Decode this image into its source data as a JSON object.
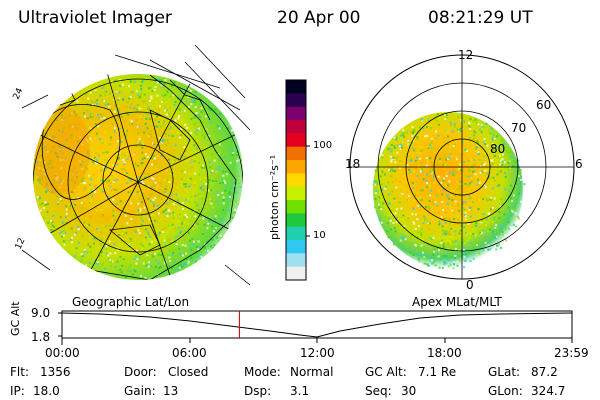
{
  "header": {
    "instrument": "Ultraviolet Imager",
    "date": "20 Apr 00",
    "time": "08:21:29 UT"
  },
  "colorbar": {
    "unit_label": "photon cm⁻²s⁻¹",
    "ticks": [
      "100",
      "10"
    ],
    "colors": [
      "#000020",
      "#2a0050",
      "#7a0070",
      "#c0003a",
      "#e6001e",
      "#f07000",
      "#ffa500",
      "#ffd800",
      "#c8f000",
      "#70e000",
      "#20c840",
      "#20d0b0",
      "#30c8f0",
      "#a0e0f0",
      "#f0f0f0"
    ]
  },
  "left_map": {
    "caption": "Geographic Lat/Lon",
    "frame_marks": [
      "24",
      "12"
    ]
  },
  "right_map": {
    "caption": "Apex MLat/MLT",
    "mlt_labels": {
      "top": "12",
      "left": "18",
      "right": "6",
      "bottom": "0"
    },
    "lat_labels": [
      "60",
      "70",
      "80"
    ]
  },
  "altitude_plot": {
    "ylabel": "GC Alt",
    "ytick_top": "9.0",
    "ytick_bottom": "1.8",
    "xticks": [
      "00:00",
      "06:00",
      "12:00",
      "18:00",
      "23:59"
    ],
    "current_time_hours": 8.35
  },
  "status": {
    "flt_label": "Flt:",
    "flt_value": "1356",
    "ip_label": "IP:",
    "ip_value": "18.0",
    "door_label": "Door:",
    "door_value": "Closed",
    "gain_label": "Gain:",
    "gain_value": "13",
    "mode_label": "Mode:",
    "mode_value": "Normal",
    "dsp_label": "Dsp:",
    "dsp_value": "3.1",
    "gcalt_label": "GC Alt:",
    "gcalt_value": "7.1 Re",
    "seq_label": "Seq:",
    "seq_value": "30",
    "glat_label": "GLat:",
    "glat_value": "87.2",
    "glon_label": "GLon:",
    "glon_value": "324.7"
  }
}
